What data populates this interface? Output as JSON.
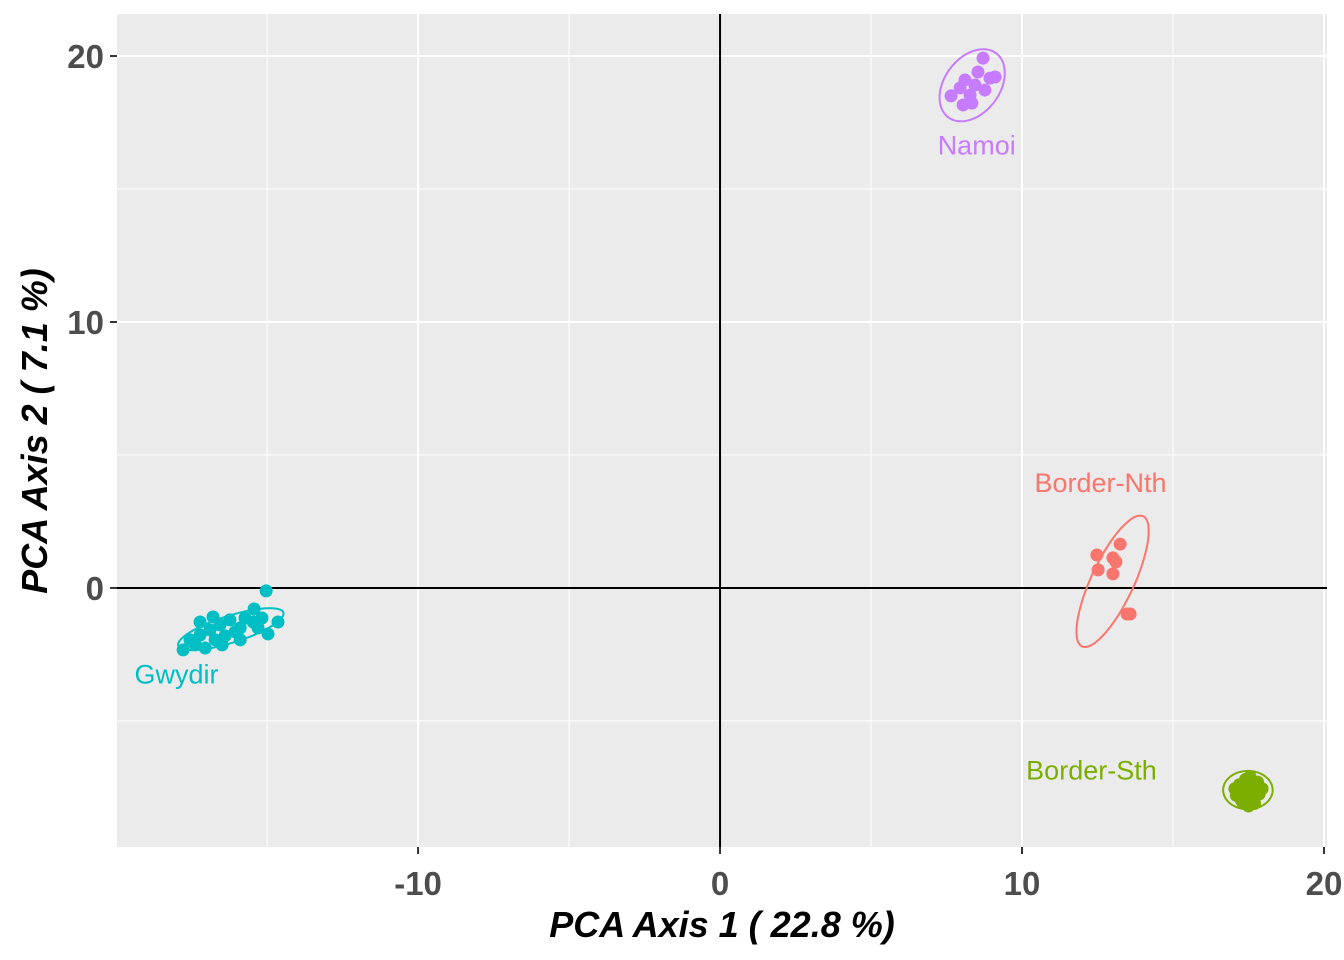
{
  "chart_data": {
    "type": "scatter",
    "title": "",
    "xlabel": "PCA Axis 1 ( 22.8 %)",
    "ylabel": "PCA Axis 2 ( 7.1 %)",
    "xlim": [
      -19.97,
      20.1
    ],
    "ylim": [
      -9.74,
      21.58
    ],
    "x_ticks": [
      -10,
      0,
      10,
      20
    ],
    "x_tick_labels": [
      "-10",
      "0",
      "10",
      "20"
    ],
    "y_ticks": [
      0,
      10,
      20
    ],
    "y_tick_labels": [
      "0",
      "10",
      "20"
    ],
    "x_minor_gridlines": [
      -15,
      -5,
      5,
      15
    ],
    "y_minor_gridlines": [
      -5,
      5,
      15
    ],
    "grid": true,
    "reference_lines": {
      "x": 0,
      "y": 0
    },
    "legend": "none",
    "panel_background": "#EBEBEB",
    "series": [
      {
        "name": "Gwydir",
        "color": "#00BFC4",
        "label": "Gwydir",
        "label_pos": [
          -18.0,
          -3.6
        ],
        "ellipse": {
          "cx": -16.2,
          "cy": -1.55,
          "rx": 1.85,
          "ry": 0.5,
          "angle_deg": 20
        },
        "points": [
          [
            -15.03,
            -0.11
          ],
          [
            -17.78,
            -2.33
          ],
          [
            -14.64,
            -1.28
          ],
          [
            -14.97,
            -1.73
          ],
          [
            -15.43,
            -0.79
          ],
          [
            -15.46,
            -1.28
          ],
          [
            -15.89,
            -1.5
          ],
          [
            -16.23,
            -1.2
          ],
          [
            -16.56,
            -1.39
          ],
          [
            -16.89,
            -1.58
          ],
          [
            -17.22,
            -1.77
          ],
          [
            -17.38,
            -2.14
          ],
          [
            -17.05,
            -2.26
          ],
          [
            -16.72,
            -1.95
          ],
          [
            -16.39,
            -1.8
          ],
          [
            -16.06,
            -1.65
          ],
          [
            -15.73,
            -1.13
          ],
          [
            -15.17,
            -1.13
          ],
          [
            -17.22,
            -1.28
          ],
          [
            -16.79,
            -1.09
          ],
          [
            -16.49,
            -2.14
          ],
          [
            -15.89,
            -1.95
          ],
          [
            -15.3,
            -1.5
          ],
          [
            -17.55,
            -1.95
          ]
        ]
      },
      {
        "name": "Namoi",
        "color": "#C77CFF",
        "label": "Namoi",
        "label_pos": [
          8.5,
          16.3
        ],
        "ellipse": {
          "cx": 8.35,
          "cy": 18.9,
          "rx": 1.45,
          "ry": 0.95,
          "angle_deg": 62
        },
        "points": [
          [
            8.71,
            19.92
          ],
          [
            8.94,
            19.17
          ],
          [
            9.11,
            19.21
          ],
          [
            7.65,
            18.5
          ],
          [
            8.11,
            19.1
          ],
          [
            8.44,
            18.91
          ],
          [
            8.28,
            18.53
          ],
          [
            8.05,
            18.16
          ],
          [
            8.34,
            18.23
          ],
          [
            8.77,
            18.72
          ],
          [
            8.54,
            19.4
          ],
          [
            7.95,
            18.8
          ]
        ]
      },
      {
        "name": "Border-Nth",
        "color": "#F8766D",
        "label": "Border-Nth",
        "label_pos": [
          12.6,
          3.6
        ],
        "ellipse": {
          "cx": 13.0,
          "cy": 0.25,
          "rx": 2.65,
          "ry": 0.72,
          "angle_deg": 68
        },
        "points": [
          [
            12.48,
            1.24
          ],
          [
            12.52,
            0.68
          ],
          [
            13.01,
            1.13
          ],
          [
            13.11,
            0.98
          ],
          [
            13.01,
            0.53
          ],
          [
            13.25,
            1.65
          ],
          [
            13.58,
            -0.98
          ],
          [
            13.48,
            -0.98
          ]
        ]
      },
      {
        "name": "Border-Sth",
        "color": "#7CAE00",
        "label": "Border-Sth",
        "label_pos": [
          12.3,
          -7.2
        ],
        "ellipse": {
          "cx": 17.48,
          "cy": -7.6,
          "rx": 0.82,
          "ry": 0.72,
          "angle_deg": 0
        },
        "points": [
          [
            17.48,
            -7.59
          ],
          [
            17.2,
            -7.4
          ],
          [
            17.75,
            -7.35
          ],
          [
            17.1,
            -7.8
          ],
          [
            17.85,
            -7.75
          ],
          [
            17.3,
            -8.05
          ],
          [
            17.7,
            -8.1
          ],
          [
            17.55,
            -7.1
          ],
          [
            17.4,
            -7.2
          ],
          [
            17.95,
            -7.55
          ],
          [
            17.05,
            -7.55
          ],
          [
            17.6,
            -7.85
          ],
          [
            17.35,
            -7.7
          ],
          [
            17.5,
            -8.2
          ],
          [
            17.8,
            -7.3
          ],
          [
            17.25,
            -7.95
          ]
        ]
      }
    ]
  }
}
